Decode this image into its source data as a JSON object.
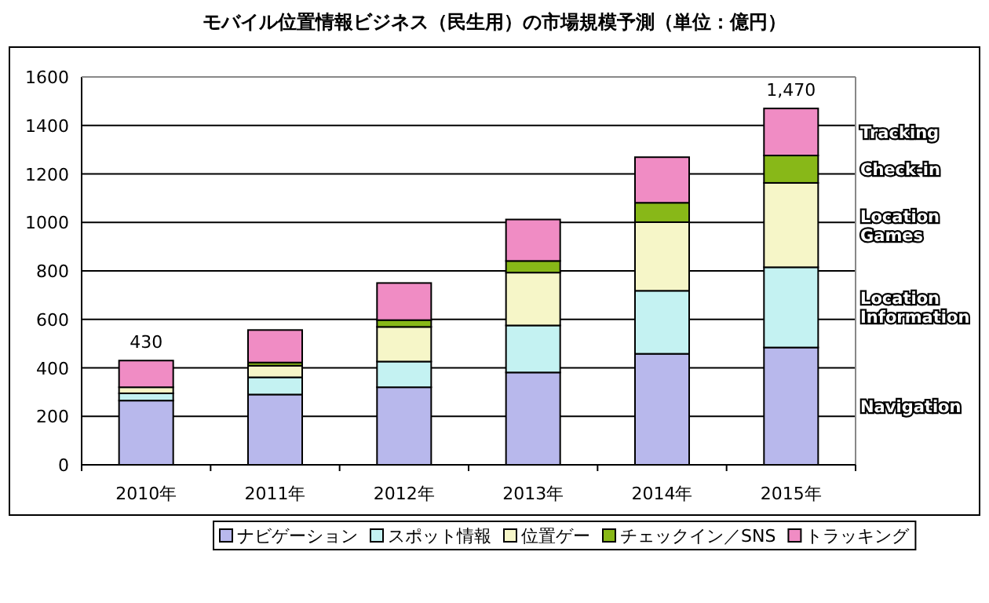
{
  "chart_data": {
    "type": "bar",
    "stacked": true,
    "title": "モバイル位置情報ビジネス（民生用）の市場規模予測（単位：億円）",
    "categories": [
      "2010年",
      "2011年",
      "2012年",
      "2013年",
      "2014年",
      "2015年"
    ],
    "series": [
      {
        "name": "ナビゲーション",
        "color": "#b8b8ec",
        "values": [
          265,
          290,
          320,
          381,
          458,
          484
        ]
      },
      {
        "name": "スポット情報",
        "color": "#c4f2f2",
        "values": [
          30,
          71,
          106,
          194,
          260,
          331
        ]
      },
      {
        "name": "位置ゲー",
        "color": "#f6f6c8",
        "values": [
          25,
          48,
          143,
          218,
          283,
          348
        ]
      },
      {
        "name": "チェックイン／SNS",
        "color": "#88b818",
        "values": [
          null,
          13,
          28,
          48,
          80,
          113
        ]
      },
      {
        "name": "トラッキング",
        "color": "#f08cc4",
        "values": [
          110,
          134,
          153,
          171,
          188,
          194
        ]
      }
    ],
    "totals": [
      "430",
      null,
      null,
      null,
      null,
      "1,470"
    ],
    "ylim": [
      0,
      1600
    ],
    "yticks": [
      0,
      200,
      400,
      600,
      800,
      1000,
      1200,
      1400,
      1600
    ],
    "grid": "y",
    "legend": "bottom",
    "annotations": [
      "Tracking",
      "Check-in",
      "Location Games",
      "Location Information",
      "Navigation"
    ]
  }
}
